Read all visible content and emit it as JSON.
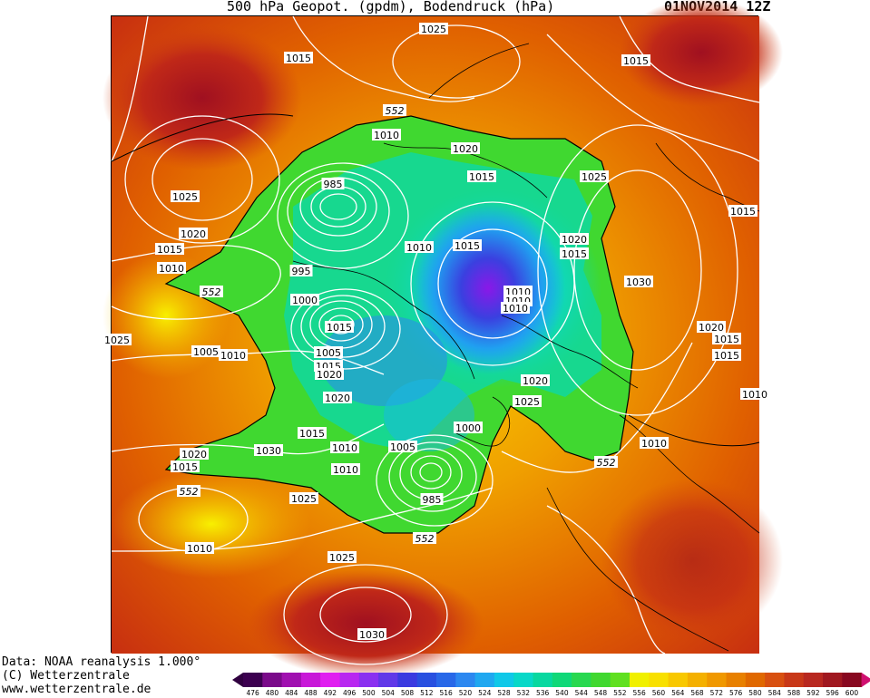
{
  "header": {
    "title": "500 hPa Geopot. (gpdm), Bodendruck (hPa)",
    "date": "01NOV2014 12Z"
  },
  "credits": {
    "data_source": "Data: NOAA reanalysis 1.000°",
    "copyright": "(C) Wetterzentrale",
    "url": "www.wetterzentrale.de"
  },
  "colorbar": {
    "ticks": [
      476,
      480,
      484,
      488,
      492,
      496,
      500,
      504,
      508,
      512,
      516,
      520,
      524,
      528,
      532,
      536,
      540,
      544,
      548,
      552,
      556,
      560,
      564,
      568,
      572,
      576,
      580,
      584,
      588,
      592,
      596,
      600
    ],
    "colors": [
      "#3c0050",
      "#7a0a8a",
      "#a010b0",
      "#c818d8",
      "#e01ef0",
      "#b828f0",
      "#8a30f0",
      "#6038e8",
      "#3a3ae0",
      "#2850e0",
      "#2868e8",
      "#2c88f0",
      "#20a8f0",
      "#10c8e8",
      "#08d8c8",
      "#08d8a0",
      "#10d878",
      "#28d850",
      "#40d830",
      "#60e020",
      "#f0f000",
      "#f8e000",
      "#f8c800",
      "#f4b000",
      "#f09800",
      "#e88000",
      "#e06800",
      "#d85010",
      "#c83818",
      "#b82820",
      "#a01820",
      "#880820"
    ],
    "unit_note": "gpdm"
  },
  "map": {
    "pressure_labels": [
      {
        "text": "1025"
      },
      {
        "text": "1015"
      },
      {
        "text": "1015"
      },
      {
        "text": "1010"
      },
      {
        "text": "1020"
      },
      {
        "text": "1015"
      },
      {
        "text": "985"
      },
      {
        "text": "1025"
      },
      {
        "text": "1025"
      },
      {
        "text": "1020"
      },
      {
        "text": "1015"
      },
      {
        "text": "1010"
      },
      {
        "text": "995"
      },
      {
        "text": "1000"
      },
      {
        "text": "1010"
      },
      {
        "text": "1015"
      },
      {
        "text": "1020"
      },
      {
        "text": "1015"
      },
      {
        "text": "1010"
      },
      {
        "text": "1010"
      },
      {
        "text": "1030"
      },
      {
        "text": "1020"
      },
      {
        "text": "1015"
      },
      {
        "text": "1005"
      },
      {
        "text": "1010"
      },
      {
        "text": "1005"
      },
      {
        "text": "1015"
      },
      {
        "text": "1020"
      },
      {
        "text": "1015"
      },
      {
        "text": "1020"
      },
      {
        "text": "1025"
      },
      {
        "text": "1025"
      },
      {
        "text": "1020"
      },
      {
        "text": "1015"
      },
      {
        "text": "1020"
      },
      {
        "text": "1015"
      },
      {
        "text": "1010"
      },
      {
        "text": "1030"
      },
      {
        "text": "1005"
      },
      {
        "text": "1000"
      },
      {
        "text": "985"
      },
      {
        "text": "1010"
      },
      {
        "text": "1015"
      },
      {
        "text": "1025"
      },
      {
        "text": "1010"
      },
      {
        "text": "1025"
      },
      {
        "text": "1030"
      },
      {
        "text": "1010"
      },
      {
        "text": "1010"
      },
      {
        "text": "1015"
      },
      {
        "text": "1010"
      },
      {
        "text": "1010"
      }
    ],
    "geopotential_labels": [
      {
        "text": "552"
      },
      {
        "text": "552"
      },
      {
        "text": "552"
      },
      {
        "text": "552"
      },
      {
        "text": "552"
      }
    ]
  }
}
